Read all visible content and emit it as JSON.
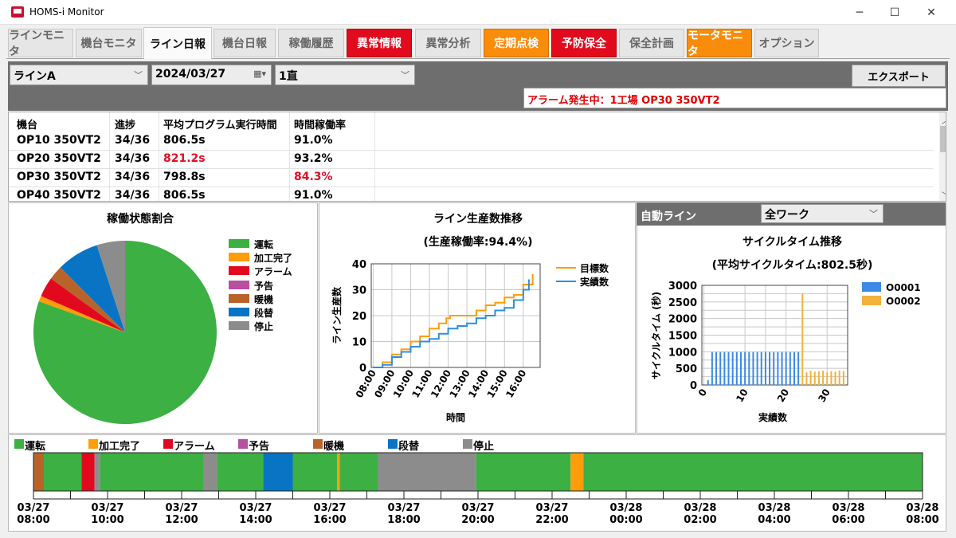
{
  "window": {
    "title": "HOMS-i Monitor",
    "minimize": "─",
    "maximize": "☐",
    "close": "✕"
  },
  "tabs": [
    {
      "label": "ラインモニタ",
      "style": "normal"
    },
    {
      "label": "機台モニタ",
      "style": "normal"
    },
    {
      "label": "ライン日報",
      "style": "active"
    },
    {
      "label": "機台日報",
      "style": "normal"
    },
    {
      "label": "稼働履歴",
      "style": "normal"
    },
    {
      "label": "異常情報",
      "style": "red"
    },
    {
      "label": "異常分析",
      "style": "normal"
    },
    {
      "label": "定期点検",
      "style": "orange"
    },
    {
      "label": "予防保全",
      "style": "red"
    },
    {
      "label": "保全計画",
      "style": "normal"
    },
    {
      "label": "モータモニタ",
      "style": "orange"
    },
    {
      "label": "オプション",
      "style": "normal"
    }
  ],
  "filters": {
    "line": "ラインA",
    "date": "2024/03/27",
    "shift": "1直",
    "export": "エクスポート"
  },
  "alarm": "アラーム発生中：1工場 OP30 350VT2",
  "table": {
    "headers": [
      "機台",
      "進捗",
      "平均プログラム実行時間",
      "時間稼働率"
    ],
    "rows": [
      [
        "OP10 350VT2",
        "34/36",
        "806.5s",
        "91.0%"
      ],
      [
        "OP20 350VT2",
        "34/36",
        "821.2s",
        "93.2%"
      ],
      [
        "OP30 350VT2",
        "34/36",
        "798.8s",
        "84.3%"
      ],
      [
        "OP40 350VT2",
        "34/36",
        "806.5s",
        "91.0%"
      ]
    ],
    "highlight": {
      "warn": "#e01020"
    }
  },
  "legend_colors": {
    "運転": "#3cb043",
    "加工完了": "#ff9d0a",
    "アラーム": "#e2091e",
    "予告": "#b94fa0",
    "暖機": "#b8632a",
    "段替": "#0a74c4",
    "停止": "#8c8c8c"
  },
  "pie_panel": {
    "title": "稼働状態割合"
  },
  "line_panel": {
    "title": "ライン生産数推移",
    "subtitle": "(生産稼働率:94.4%)"
  },
  "cycle_panel": {
    "header": "自動ライン",
    "work_select": "全ワーク",
    "title": "サイクルタイム推移",
    "subtitle": "(平均サイクルタイム:802.5秒)"
  },
  "chart_data": [
    {
      "type": "pie",
      "title": "稼働状態割合",
      "labels": [
        "運転",
        "加工完了",
        "アラーム",
        "予告",
        "暖機",
        "段替",
        "停止"
      ],
      "values": [
        80.5,
        1.0,
        3.5,
        0.0,
        2.5,
        7.5,
        5.0
      ]
    },
    {
      "type": "line",
      "title": "ライン生産数推移",
      "subtitle": "(生産稼働率:94.4%)",
      "xlabel": "時間",
      "ylabel": "ライン生産数",
      "ylim": [
        0,
        40
      ],
      "xticks": [
        "08:00",
        "09:00",
        "10:00",
        "11:00",
        "12:00",
        "13:00",
        "14:00",
        "15:00",
        "16:00"
      ],
      "series": [
        {
          "name": "目標数",
          "color": "#ff9d0a",
          "x": [
            8.0,
            8.5,
            9.0,
            9.5,
            10.0,
            10.5,
            11.0,
            11.5,
            11.9,
            12.1,
            12.5,
            13.0,
            13.2,
            13.5,
            14.0,
            14.5,
            15.0,
            15.5,
            16.0,
            16.5
          ],
          "y": [
            0,
            2,
            5,
            7,
            10,
            12,
            15,
            17,
            19,
            20,
            20,
            20,
            20,
            22,
            24,
            25,
            27,
            28,
            32,
            36
          ]
        },
        {
          "name": "実績数",
          "color": "#2d8fe0",
          "x": [
            8.0,
            8.5,
            9.0,
            9.5,
            10.0,
            10.5,
            11.0,
            11.5,
            12.0,
            12.5,
            13.0,
            13.5,
            14.0,
            14.5,
            15.0,
            15.3,
            15.5,
            16.0,
            16.3
          ],
          "y": [
            0,
            1,
            4,
            6,
            8,
            10,
            11,
            13,
            15,
            16,
            17,
            19,
            20,
            22,
            23,
            23,
            26,
            30,
            34
          ]
        }
      ]
    },
    {
      "type": "bar",
      "title": "サイクルタイム推移",
      "subtitle": "(平均サイクルタイム:802.5秒)",
      "xlabel": "実績数",
      "ylabel": "サイクルタイム (秒)",
      "ylim": [
        0,
        3000
      ],
      "xticks": [
        "0",
        "10",
        "20",
        "30"
      ],
      "yticks": [
        "0",
        "250",
        "500",
        "750",
        "1000",
        "1250",
        "1500",
        "1750",
        "2000",
        "2250",
        "2500",
        "2750",
        "3000"
      ],
      "series": [
        {
          "name": "O0001",
          "color": "#3b8ae6",
          "x": [
            1,
            2,
            3,
            4,
            5,
            6,
            7,
            8,
            9,
            10,
            11,
            12,
            13,
            14,
            15,
            16,
            17,
            18,
            19,
            20,
            21,
            22,
            23
          ],
          "values": [
            140,
            990,
            990,
            990,
            990,
            990,
            990,
            990,
            990,
            990,
            990,
            990,
            990,
            990,
            990,
            990,
            990,
            990,
            990,
            990,
            990,
            990,
            990
          ]
        },
        {
          "name": "O0002",
          "color": "#f3b23c",
          "x": [
            24,
            25,
            26,
            27,
            28,
            29,
            30,
            31,
            32,
            33,
            34
          ],
          "values": [
            2750,
            380,
            430,
            400,
            410,
            430,
            380,
            420,
            400,
            430,
            420
          ]
        }
      ]
    },
    {
      "type": "timeline",
      "title": "",
      "start": "03/27 08:00",
      "end": "03/28 08:00",
      "ticks": [
        "03/27 08:00",
        "03/27 10:00",
        "03/27 12:00",
        "03/27 14:00",
        "03/27 16:00",
        "03/27 18:00",
        "03/27 20:00",
        "03/27 22:00",
        "03/28 00:00",
        "03/28 02:00",
        "03/28 04:00",
        "03/28 06:00",
        "03/28 08:00"
      ],
      "segments_hours": [
        {
          "state": "暖機",
          "from": 0.0,
          "to": 0.28
        },
        {
          "state": "運転",
          "from": 0.28,
          "to": 1.3
        },
        {
          "state": "アラーム",
          "from": 1.3,
          "to": 1.65
        },
        {
          "state": "停止",
          "from": 1.65,
          "to": 1.8
        },
        {
          "state": "運転",
          "from": 1.8,
          "to": 4.6
        },
        {
          "state": "停止",
          "from": 4.6,
          "to": 4.95
        },
        {
          "state": "運転",
          "from": 4.95,
          "to": 6.2
        },
        {
          "state": "段替",
          "from": 6.2,
          "to": 7.0
        },
        {
          "state": "運転",
          "from": 7.0,
          "to": 8.2
        },
        {
          "state": "加工完了",
          "from": 8.2,
          "to": 8.27
        },
        {
          "state": "運転",
          "from": 8.27,
          "to": 9.3
        },
        {
          "state": "停止",
          "from": 9.3,
          "to": 11.95
        },
        {
          "state": "運転",
          "from": 11.95,
          "to": 14.5
        },
        {
          "state": "加工完了",
          "from": 14.5,
          "to": 14.85
        },
        {
          "state": "運転",
          "from": 14.85,
          "to": 24.0
        }
      ]
    }
  ]
}
